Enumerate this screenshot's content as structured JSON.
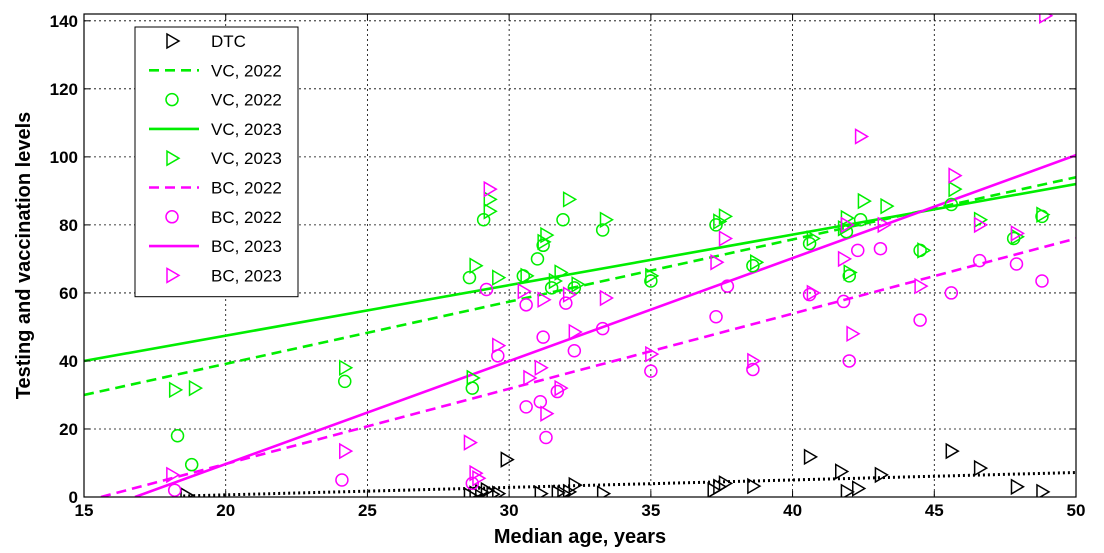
{
  "chart_data": {
    "type": "scatter",
    "title": "",
    "xlabel": "Median age, years",
    "ylabel": "Testing and vaccination levels",
    "xlim": [
      15,
      50
    ],
    "ylim": [
      0,
      142
    ],
    "xticks": [
      15,
      20,
      25,
      30,
      35,
      40,
      45,
      50
    ],
    "yticks": [
      0,
      20,
      40,
      60,
      80,
      100,
      120,
      140
    ],
    "grid": true,
    "legend_position": "top-left",
    "colors": {
      "dtc": "#000000",
      "vc": "#00ee00",
      "bc": "#ff00ff"
    },
    "series": [
      {
        "name": "DTC",
        "kind": "points",
        "marker": "triangle-right",
        "color": "#000000",
        "points": [
          [
            18.6,
            0.5
          ],
          [
            28.6,
            0.5
          ],
          [
            28.8,
            1.0
          ],
          [
            29.0,
            1.5
          ],
          [
            29.2,
            2.0
          ],
          [
            29.4,
            0.8
          ],
          [
            29.6,
            1.0
          ],
          [
            29.9,
            11.0
          ],
          [
            31.1,
            1.0
          ],
          [
            31.7,
            1.2
          ],
          [
            31.9,
            1.0
          ],
          [
            32.1,
            1.5
          ],
          [
            32.3,
            3.5
          ],
          [
            33.3,
            1.0
          ],
          [
            37.2,
            2.0
          ],
          [
            37.4,
            3.0
          ],
          [
            37.6,
            4.0
          ],
          [
            38.6,
            3.2
          ],
          [
            40.6,
            11.8
          ],
          [
            41.7,
            7.5
          ],
          [
            41.9,
            1.5
          ],
          [
            42.3,
            2.5
          ],
          [
            43.1,
            6.5
          ],
          [
            45.6,
            13.5
          ],
          [
            46.6,
            8.5
          ],
          [
            47.9,
            3.0
          ],
          [
            48.8,
            1.5
          ]
        ]
      },
      {
        "name": "",
        "kind": "line",
        "style": "dotted",
        "color": "#000000",
        "points": [
          [
            18.5,
            0.3
          ],
          [
            50,
            7.2
          ]
        ]
      },
      {
        "name": "VC, 2022",
        "kind": "line",
        "style": "dashed",
        "color": "#00ee00",
        "points": [
          [
            15,
            30
          ],
          [
            50,
            94
          ]
        ]
      },
      {
        "name": "VC, 2022",
        "kind": "points",
        "marker": "circle",
        "color": "#00ee00",
        "points": [
          [
            18.3,
            18.0
          ],
          [
            18.8,
            9.5
          ],
          [
            24.2,
            34.0
          ],
          [
            28.7,
            32.0
          ],
          [
            28.6,
            64.5
          ],
          [
            29.1,
            81.5
          ],
          [
            30.5,
            65.0
          ],
          [
            31.0,
            70.0
          ],
          [
            31.2,
            74.0
          ],
          [
            31.5,
            61.5
          ],
          [
            31.9,
            81.5
          ],
          [
            32.3,
            61.5
          ],
          [
            33.3,
            78.5
          ],
          [
            35.0,
            63.5
          ],
          [
            37.3,
            80.0
          ],
          [
            38.6,
            68.0
          ],
          [
            40.6,
            74.5
          ],
          [
            41.9,
            78.0
          ],
          [
            42.0,
            65.0
          ],
          [
            42.4,
            81.5
          ],
          [
            44.5,
            72.5
          ],
          [
            45.6,
            86.0
          ],
          [
            47.8,
            76.0
          ],
          [
            48.8,
            82.5
          ]
        ]
      },
      {
        "name": "VC, 2023",
        "kind": "line",
        "style": "solid",
        "color": "#00ee00",
        "points": [
          [
            15,
            40
          ],
          [
            50,
            92
          ]
        ]
      },
      {
        "name": "VC, 2023",
        "kind": "points",
        "marker": "triangle-right",
        "color": "#00ee00",
        "points": [
          [
            18.2,
            31.5
          ],
          [
            18.9,
            32.0
          ],
          [
            24.2,
            38.0
          ],
          [
            28.7,
            35.0
          ],
          [
            28.8,
            68.0
          ],
          [
            29.3,
            84.0
          ],
          [
            29.3,
            87.5
          ],
          [
            29.6,
            64.5
          ],
          [
            30.6,
            65.0
          ],
          [
            31.2,
            75.0
          ],
          [
            31.3,
            77.0
          ],
          [
            31.6,
            63.5
          ],
          [
            31.8,
            66.0
          ],
          [
            32.1,
            87.5
          ],
          [
            32.4,
            62.5
          ],
          [
            33.4,
            81.5
          ],
          [
            35.0,
            65.0
          ],
          [
            37.4,
            81.0
          ],
          [
            37.6,
            82.5
          ],
          [
            38.7,
            69.0
          ],
          [
            40.7,
            76.0
          ],
          [
            41.8,
            79.0
          ],
          [
            41.9,
            82.0
          ],
          [
            42.0,
            66.0
          ],
          [
            42.5,
            87.0
          ],
          [
            43.3,
            85.5
          ],
          [
            44.6,
            72.5
          ],
          [
            45.7,
            90.5
          ],
          [
            46.6,
            81.5
          ],
          [
            47.9,
            76.5
          ],
          [
            48.8,
            83.0
          ]
        ]
      },
      {
        "name": "BC, 2022",
        "kind": "line",
        "style": "dashed",
        "color": "#ff00ff",
        "points": [
          [
            15.6,
            0
          ],
          [
            50,
            76
          ]
        ]
      },
      {
        "name": "BC, 2022",
        "kind": "points",
        "marker": "circle",
        "color": "#ff00ff",
        "points": [
          [
            18.2,
            2.0
          ],
          [
            24.1,
            5.0
          ],
          [
            28.7,
            4.0
          ],
          [
            29.2,
            61.0
          ],
          [
            29.6,
            41.5
          ],
          [
            30.6,
            26.5
          ],
          [
            30.6,
            56.5
          ],
          [
            31.1,
            28.0
          ],
          [
            31.2,
            47.0
          ],
          [
            31.3,
            17.5
          ],
          [
            31.7,
            31.0
          ],
          [
            32.0,
            57.0
          ],
          [
            32.3,
            43.0
          ],
          [
            33.3,
            49.5
          ],
          [
            35.0,
            37.0
          ],
          [
            37.3,
            53.0
          ],
          [
            37.7,
            62.0
          ],
          [
            38.6,
            37.5
          ],
          [
            40.6,
            59.5
          ],
          [
            41.8,
            57.5
          ],
          [
            42.0,
            40.0
          ],
          [
            42.3,
            72.5
          ],
          [
            43.1,
            73.0
          ],
          [
            44.5,
            52.0
          ],
          [
            45.6,
            60.0
          ],
          [
            46.6,
            69.5
          ],
          [
            47.9,
            68.5
          ],
          [
            48.8,
            63.5
          ]
        ]
      },
      {
        "name": "BC, 2023",
        "kind": "line",
        "style": "solid",
        "color": "#ff00ff",
        "points": [
          [
            16.8,
            0
          ],
          [
            50,
            100.5
          ]
        ]
      },
      {
        "name": "BC, 2023",
        "kind": "points",
        "marker": "triangle-right",
        "color": "#ff00ff",
        "points": [
          [
            18.1,
            6.5
          ],
          [
            24.2,
            13.5
          ],
          [
            28.6,
            16.0
          ],
          [
            28.8,
            7.0
          ],
          [
            28.9,
            5.5
          ],
          [
            29.3,
            90.5
          ],
          [
            29.6,
            44.5
          ],
          [
            30.5,
            60.5
          ],
          [
            30.7,
            35.0
          ],
          [
            31.1,
            38.0
          ],
          [
            31.2,
            58.0
          ],
          [
            31.3,
            24.5
          ],
          [
            31.8,
            32.0
          ],
          [
            32.1,
            59.5
          ],
          [
            32.3,
            48.5
          ],
          [
            33.4,
            58.5
          ],
          [
            35.0,
            42.0
          ],
          [
            37.3,
            69.0
          ],
          [
            37.6,
            76.0
          ],
          [
            38.6,
            40.0
          ],
          [
            40.7,
            60.0
          ],
          [
            41.8,
            70.0
          ],
          [
            41.9,
            80.0
          ],
          [
            42.1,
            48.0
          ],
          [
            42.4,
            106.0
          ],
          [
            43.2,
            80.0
          ],
          [
            44.5,
            62.0
          ],
          [
            45.7,
            94.5
          ],
          [
            46.6,
            80.0
          ],
          [
            47.9,
            77.5
          ],
          [
            48.9,
            141.5
          ]
        ]
      }
    ],
    "legend": [
      {
        "label": "DTC",
        "kind": "marker",
        "marker": "triangle-right",
        "color": "#000000"
      },
      {
        "label": "VC, 2022",
        "kind": "line",
        "style": "dashed",
        "color": "#00ee00"
      },
      {
        "label": "VC, 2022",
        "kind": "marker",
        "marker": "circle",
        "color": "#00ee00"
      },
      {
        "label": "VC, 2023",
        "kind": "line",
        "style": "solid",
        "color": "#00ee00"
      },
      {
        "label": "VC, 2023",
        "kind": "marker",
        "marker": "triangle-right",
        "color": "#00ee00"
      },
      {
        "label": "BC, 2022",
        "kind": "line",
        "style": "dashed",
        "color": "#ff00ff"
      },
      {
        "label": "BC, 2022",
        "kind": "marker",
        "marker": "circle",
        "color": "#ff00ff"
      },
      {
        "label": "BC, 2023",
        "kind": "line",
        "style": "solid",
        "color": "#ff00ff"
      },
      {
        "label": "BC, 2023",
        "kind": "marker",
        "marker": "triangle-right",
        "color": "#ff00ff"
      }
    ]
  }
}
